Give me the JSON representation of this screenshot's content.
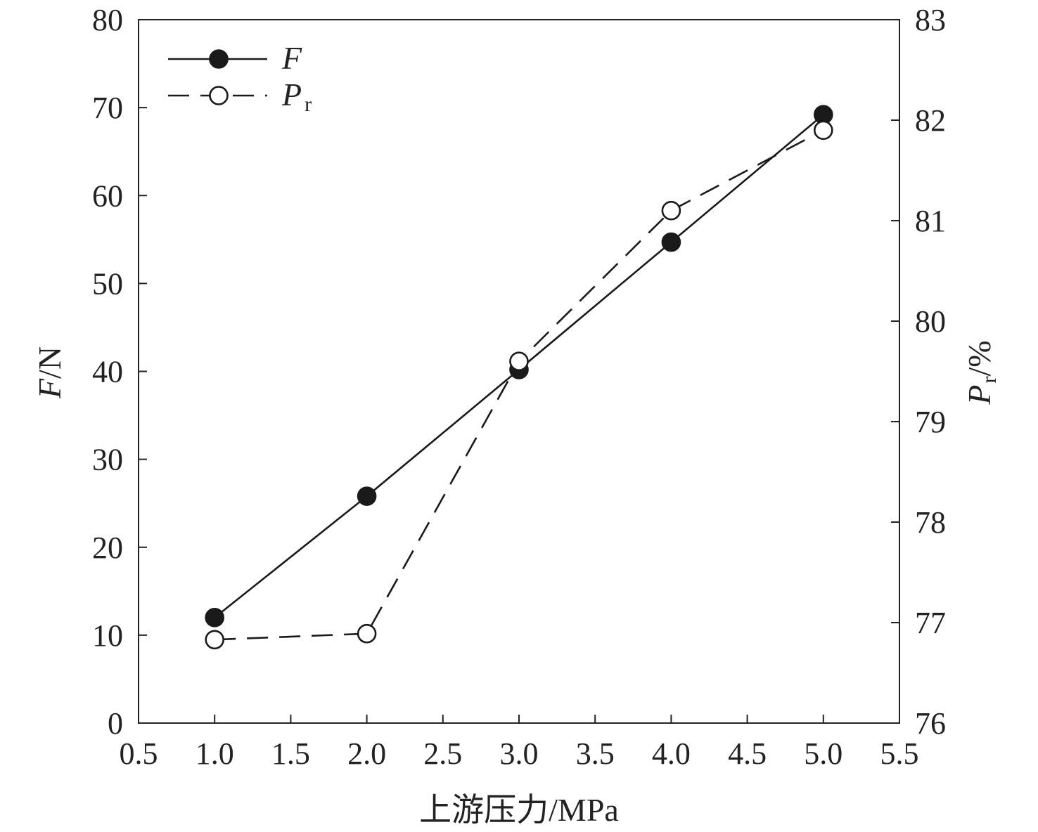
{
  "chart_data": {
    "type": "line",
    "x": [
      1.0,
      2.0,
      3.0,
      4.0,
      5.0
    ],
    "xlabel": "上游压力/MPa",
    "xlim": [
      0.5,
      5.5
    ],
    "xticks": [
      "0.5",
      "1.0",
      "1.5",
      "2.0",
      "2.5",
      "3.0",
      "3.5",
      "4.0",
      "4.5",
      "5.0",
      "5.5"
    ],
    "ylabel_left": {
      "symbol": "F",
      "unit": "/N"
    },
    "ylim_left": [
      0,
      80
    ],
    "yticks_left": [
      "0",
      "10",
      "20",
      "30",
      "40",
      "50",
      "60",
      "70",
      "80"
    ],
    "ylabel_right": {
      "symbol": "P",
      "subscript": "r",
      "unit": "/%"
    },
    "ylim_right": [
      76,
      83
    ],
    "yticks_right": [
      "76",
      "77",
      "78",
      "79",
      "80",
      "81",
      "82",
      "83"
    ],
    "grid": false,
    "legend_position": "top-left",
    "series": [
      {
        "name": "F",
        "axis": "left",
        "values": [
          12.0,
          25.8,
          40.2,
          54.7,
          69.2
        ],
        "line_style": "solid",
        "marker": "filled-circle",
        "color": "#1a1a1a"
      },
      {
        "name": "P",
        "name_subscript": "r",
        "axis": "right",
        "values": [
          76.83,
          76.89,
          79.6,
          81.1,
          81.9
        ],
        "line_style": "dashed",
        "marker": "open-circle",
        "color": "#1a1a1a"
      }
    ]
  }
}
